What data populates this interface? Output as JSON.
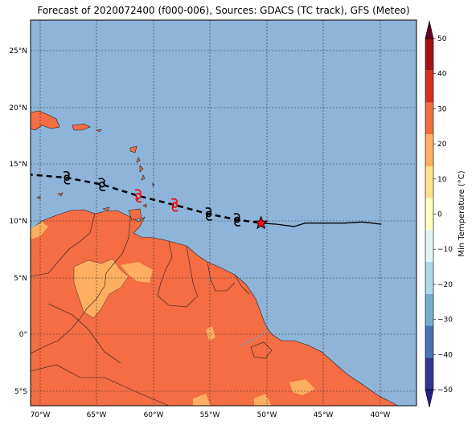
{
  "title": "Forecast of 2020072400 (f000-006), Sources: GDACS (TC track), GFS (Meteo)",
  "map": {
    "lon_ticks": [
      "70°W",
      "65°W",
      "60°W",
      "55°W",
      "50°W",
      "45°W",
      "40°W"
    ],
    "lat_ticks": [
      "25°N",
      "20°N",
      "15°N",
      "10°N",
      "5°N",
      "0°",
      "5°S"
    ],
    "extent": {
      "lon": [
        -70.7,
        -36.7
      ],
      "lat": [
        -6.2,
        27.8
      ]
    }
  },
  "track": {
    "forecast_points": [
      {
        "lon": -67.5,
        "lat": 13.9,
        "symbol": "cyclone",
        "color": "#000000"
      },
      {
        "lon": -64.4,
        "lat": 13.3,
        "symbol": "cyclone",
        "color": "#000000"
      },
      {
        "lon": -61.2,
        "lat": 12.3,
        "symbol": "cyclone",
        "color": "#ff0000"
      },
      {
        "lon": -58.0,
        "lat": 11.5,
        "symbol": "cyclone",
        "color": "#ff0000"
      },
      {
        "lon": -55.0,
        "lat": 10.7,
        "symbol": "cyclone",
        "color": "#000000"
      },
      {
        "lon": -52.5,
        "lat": 10.2,
        "symbol": "cyclone",
        "color": "#000000"
      }
    ],
    "current_position": {
      "lon": -50.4,
      "lat": 9.9,
      "symbol": "star"
    },
    "past_track": [
      [
        -50.4,
        9.9
      ],
      [
        -49.0,
        9.8
      ],
      [
        -47.5,
        9.6
      ],
      [
        -46.5,
        9.9
      ],
      [
        -45.0,
        9.9
      ],
      [
        -43.0,
        9.9
      ],
      [
        -41.5,
        10.0
      ],
      [
        -40.6,
        9.9
      ],
      [
        -39.8,
        9.8
      ]
    ],
    "forecast_line": [
      [
        -71.0,
        14.2
      ],
      [
        -67.5,
        13.9
      ],
      [
        -64.4,
        13.3
      ],
      [
        -61.2,
        12.3
      ],
      [
        -58.0,
        11.5
      ],
      [
        -55.0,
        10.7
      ],
      [
        -52.5,
        10.2
      ],
      [
        -50.4,
        9.9
      ]
    ]
  },
  "colorbar": {
    "label": "Min Temperature (°C)",
    "ticks": [
      "50",
      "40",
      "30",
      "20",
      "10",
      "0",
      "−10",
      "−20",
      "−30",
      "−40",
      "−50"
    ],
    "colors": [
      "#67001f",
      "#a50f15",
      "#d7301f",
      "#f46d43",
      "#fdae61",
      "#fee090",
      "#ffffbf",
      "#e0f3f8",
      "#abd9e9",
      "#74add1",
      "#4575b4",
      "#313695",
      "#22228b"
    ],
    "extend": "both"
  },
  "colors": {
    "ocean": "#8fb4d9",
    "land_warm": "#f46d43",
    "land_mild": "#fdae61",
    "grid": "#333333"
  }
}
